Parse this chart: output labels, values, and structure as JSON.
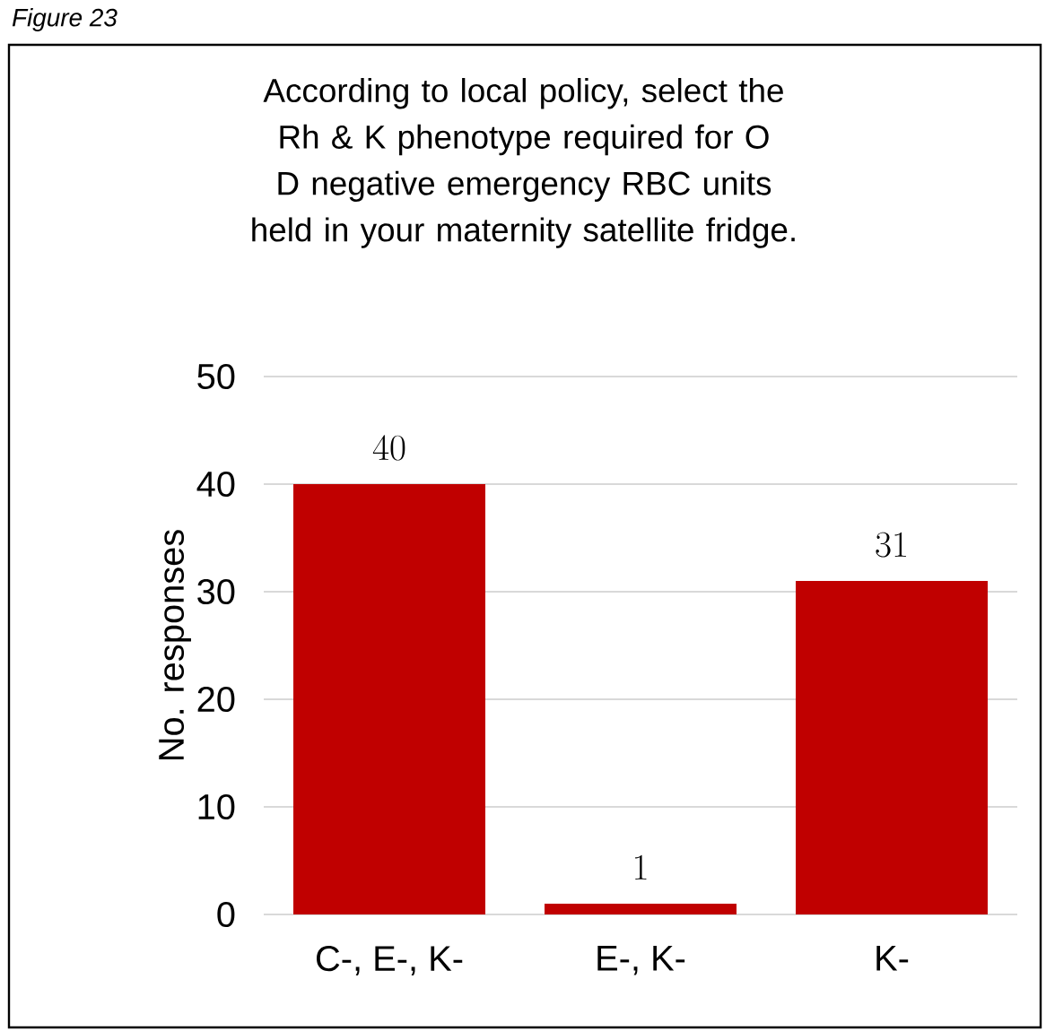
{
  "chart_data": {
    "type": "bar",
    "title": "According to local policy, select the Rh & K phenotype required for O D negative emergency RBC units held in your maternity satellite fridge.",
    "annotations": [
      "Figure 23"
    ],
    "ylabel": "No. responses",
    "categories": [
      "C-, E-, K-",
      "E-, K-",
      "K-"
    ],
    "values": [
      40,
      1,
      31
    ],
    "color": "#c00000",
    "ylim": [
      0,
      50
    ],
    "yticks": [
      0,
      10,
      20,
      30,
      40,
      50
    ],
    "grid": "y",
    "data_labels": true
  }
}
